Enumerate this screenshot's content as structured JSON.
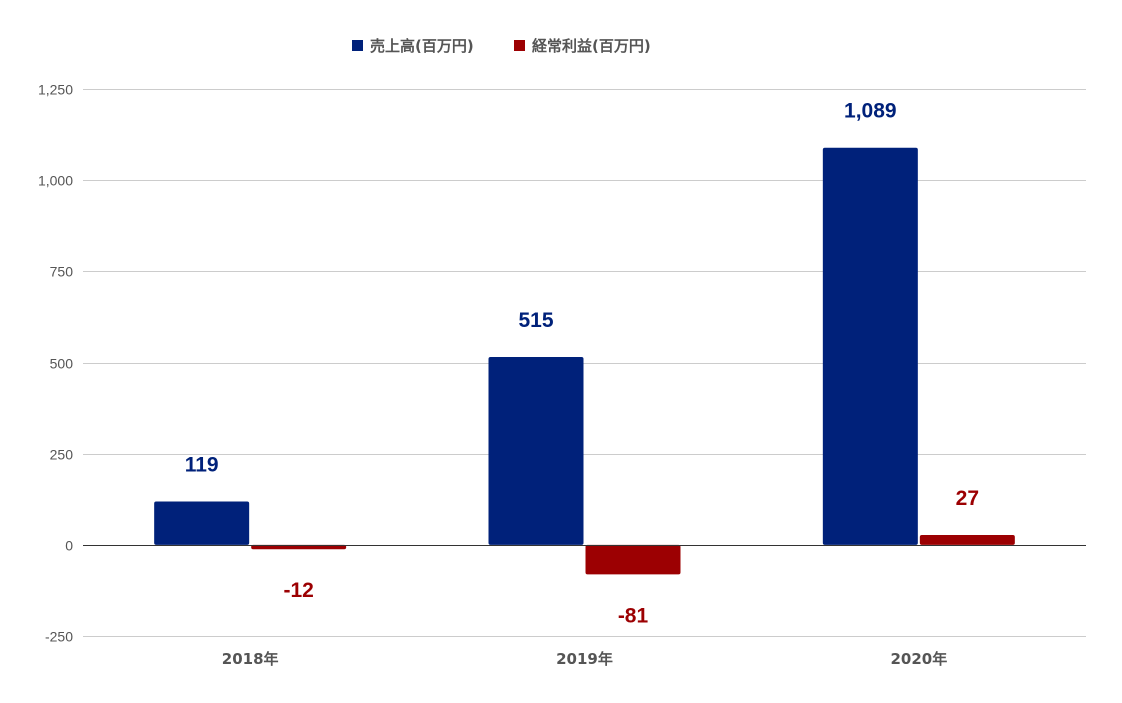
{
  "chart_data": {
    "type": "bar",
    "categories": [
      "2018年",
      "2019年",
      "2020年"
    ],
    "series": [
      {
        "name": "売上高(百万円)",
        "values": [
          119,
          515,
          1089
        ],
        "labels": [
          "119",
          "515",
          "1,089"
        ],
        "color": "#00217a"
      },
      {
        "name": "経常利益(百万円)",
        "values": [
          -12,
          -81,
          27
        ],
        "labels": [
          "-12",
          "-81",
          "27"
        ],
        "color": "#9c0002"
      }
    ],
    "ylim": [
      -250,
      1250
    ],
    "yticks": [
      -250,
      0,
      250,
      500,
      750,
      1000,
      1250
    ],
    "ytick_labels": [
      "-250",
      "0",
      "250",
      "500",
      "750",
      "1,000",
      "1,250"
    ],
    "grid": true,
    "legend_position": "top-center"
  }
}
